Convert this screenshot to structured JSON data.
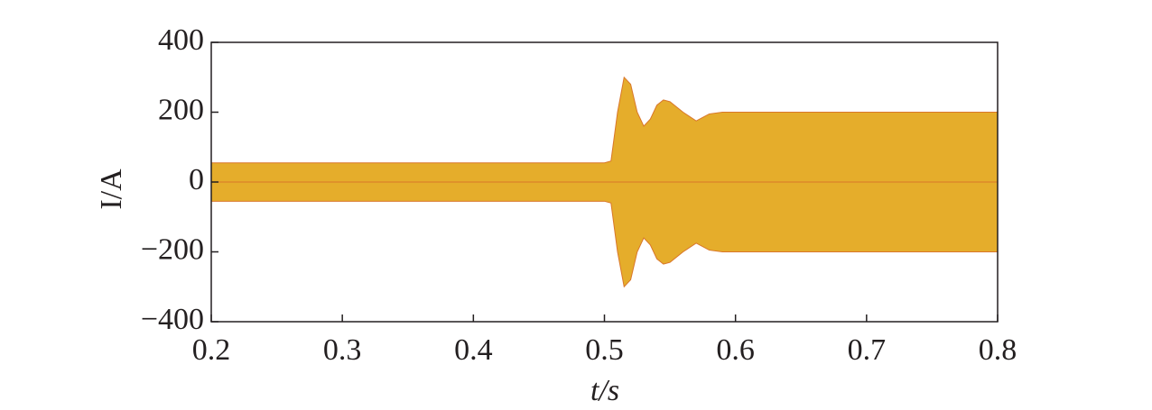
{
  "chart_data": {
    "type": "band",
    "xlabel": "t/s",
    "ylabel": "I/A",
    "color": "#e5ad2b",
    "x": [
      0.2,
      0.5,
      0.505,
      0.51,
      0.515,
      0.52,
      0.525,
      0.53,
      0.535,
      0.54,
      0.545,
      0.55,
      0.56,
      0.57,
      0.58,
      0.59,
      0.6,
      0.8
    ],
    "upper": [
      55,
      55,
      60,
      200,
      300,
      280,
      200,
      160,
      180,
      220,
      235,
      230,
      200,
      175,
      195,
      200,
      200,
      200
    ],
    "lower": [
      -55,
      -55,
      -60,
      -200,
      -300,
      -280,
      -200,
      -160,
      -180,
      -220,
      -235,
      -230,
      -200,
      -175,
      -195,
      -200,
      -200,
      -200
    ],
    "xlim": [
      0.2,
      0.8
    ],
    "xticks": [
      0.2,
      0.3,
      0.4,
      0.5,
      0.6,
      0.7,
      0.8
    ],
    "ylim": [
      -400,
      400
    ],
    "yticks": [
      {
        "value": -400,
        "label": "−400"
      },
      {
        "value": -200,
        "label": "−200"
      },
      0,
      200,
      400
    ]
  }
}
